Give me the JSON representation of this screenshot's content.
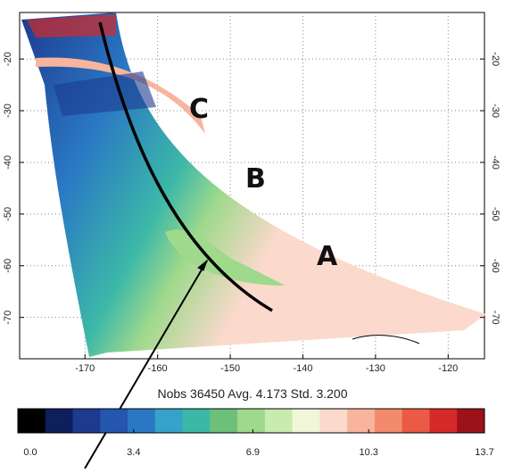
{
  "map": {
    "xticks": [
      -170,
      -160,
      -150,
      -140,
      -130,
      -120
    ],
    "xlim": [
      -179,
      -115
    ],
    "yticks": [
      -20,
      -30,
      -40,
      -50,
      -60,
      -70
    ],
    "ylim": [
      -11,
      -78
    ],
    "stats": "Nobs 36450  Avg. 4.173  Std. 3.200",
    "annotations": [
      "C",
      "B",
      "A"
    ],
    "colorbar": {
      "colors": [
        "#000000",
        "#0d1f5c",
        "#1d3a8f",
        "#2456b0",
        "#2a78c4",
        "#35a3c9",
        "#3cb8a8",
        "#6cc07a",
        "#9fd98c",
        "#c8ebb0",
        "#f2f6d8",
        "#fbd9cc",
        "#f8b49c",
        "#f38a6c",
        "#ea5a44",
        "#d42a2a",
        "#9c1218"
      ],
      "lim": [
        0,
        13.7
      ],
      "ticks": [
        {
          "value": 0,
          "label": "0.0"
        },
        3.4,
        6.9,
        10.3,
        13.7
      ]
    }
  }
}
